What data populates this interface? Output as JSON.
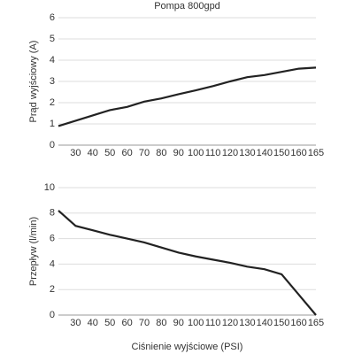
{
  "chart_data": [
    {
      "type": "line",
      "title": "Pompa 800gpd",
      "y_label": "Prąd wyjściowy (A)",
      "categories": [
        null,
        "30",
        "40",
        "50",
        "60",
        "70",
        "80",
        "90",
        "100",
        "110",
        "120",
        "130",
        "140",
        "150",
        "160",
        "165"
      ],
      "values": [
        0.9,
        1.15,
        1.4,
        1.65,
        1.8,
        2.05,
        2.2,
        2.4,
        2.58,
        2.78,
        3.0,
        3.2,
        3.3,
        3.45,
        3.6,
        3.65
      ],
      "color": "#222222",
      "ylim": [
        0,
        6
      ],
      "yticks": [
        0,
        1,
        2,
        3,
        4,
        5,
        6
      ],
      "grid": true
    },
    {
      "type": "line",
      "y_label": "Przepływ (l/min)",
      "x_label": "Ciśnienie wyjściowe (PSI)",
      "categories": [
        null,
        "30",
        "40",
        "50",
        "60",
        "70",
        "80",
        "90",
        "100",
        "110",
        "120",
        "130",
        "140",
        "150",
        "160",
        "165"
      ],
      "values": [
        8.2,
        7.0,
        6.65,
        6.3,
        6.0,
        5.7,
        5.3,
        4.9,
        4.6,
        4.35,
        4.1,
        3.8,
        3.6,
        3.2,
        1.6,
        0
      ],
      "color": "#222222",
      "ylim": [
        0,
        10
      ],
      "yticks": [
        0,
        2,
        4,
        6,
        8,
        10
      ],
      "grid": true
    }
  ]
}
